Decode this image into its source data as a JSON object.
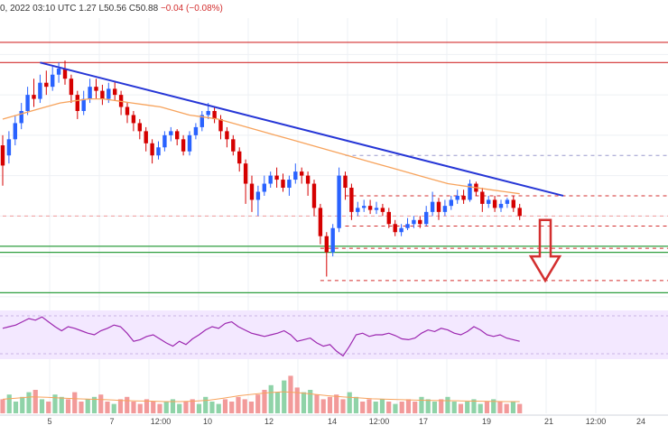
{
  "header": {
    "date_time_fragment": "0, 2022 03:10 UTC",
    "high_fragment": "1.27",
    "low": "L50.56",
    "close": "C50.88",
    "change": "−0.04 (−0.08%)"
  },
  "chart_data": {
    "type": "candlestick",
    "x_ticks": [
      "5",
      "7",
      "12:00",
      "10",
      "12",
      "14",
      "12:00",
      "17",
      "19",
      "21",
      "12:00",
      "24"
    ],
    "colors": {
      "up": "#2962ff",
      "down": "#d50000",
      "ma": "#f7a35c",
      "trendline": "#2636d6",
      "support": "#2e9e3e",
      "resistance": "#d32f2f",
      "rsi": "#9c27b0"
    },
    "price_candles": [
      [
        55,
        45,
        60,
        35
      ],
      [
        50,
        58,
        62,
        46
      ],
      [
        58,
        66,
        70,
        55
      ],
      [
        66,
        72,
        76,
        63
      ],
      [
        72,
        80,
        84,
        70
      ],
      [
        80,
        78,
        88,
        74
      ],
      [
        78,
        86,
        90,
        76
      ],
      [
        86,
        84,
        92,
        80
      ],
      [
        84,
        90,
        94,
        82
      ],
      [
        90,
        93,
        96,
        86
      ],
      [
        93,
        88,
        97,
        85
      ],
      [
        88,
        80,
        90,
        76
      ],
      [
        80,
        72,
        82,
        68
      ],
      [
        72,
        78,
        82,
        70
      ],
      [
        78,
        84,
        88,
        76
      ],
      [
        84,
        82,
        88,
        78
      ],
      [
        82,
        78,
        85,
        75
      ],
      [
        78,
        83,
        86,
        76
      ],
      [
        83,
        80,
        87,
        77
      ],
      [
        80,
        74,
        82,
        70
      ],
      [
        74,
        70,
        76,
        66
      ],
      [
        70,
        66,
        72,
        62
      ],
      [
        66,
        62,
        68,
        58
      ],
      [
        62,
        56,
        64,
        52
      ],
      [
        56,
        50,
        58,
        46
      ],
      [
        50,
        54,
        57,
        48
      ],
      [
        54,
        60,
        62,
        52
      ],
      [
        60,
        62,
        64,
        57
      ],
      [
        62,
        58,
        63,
        55
      ],
      [
        58,
        52,
        60,
        50
      ],
      [
        52,
        60,
        62,
        50
      ],
      [
        60,
        64,
        66,
        58
      ],
      [
        64,
        70,
        72,
        62
      ],
      [
        70,
        72,
        76,
        68
      ],
      [
        72,
        68,
        74,
        66
      ],
      [
        68,
        62,
        70,
        58
      ],
      [
        62,
        58,
        64,
        54
      ],
      [
        58,
        52,
        60,
        50
      ],
      [
        52,
        46,
        54,
        42
      ],
      [
        46,
        36,
        48,
        26
      ],
      [
        36,
        28,
        40,
        22
      ],
      [
        28,
        32,
        35,
        20
      ],
      [
        32,
        36,
        40,
        30
      ],
      [
        36,
        40,
        42,
        34
      ],
      [
        40,
        38,
        44,
        34
      ],
      [
        38,
        34,
        41,
        32
      ],
      [
        34,
        38,
        40,
        30
      ],
      [
        38,
        42,
        46,
        36
      ],
      [
        42,
        40,
        44,
        36
      ],
      [
        40,
        36,
        42,
        30
      ],
      [
        36,
        24,
        38,
        20
      ],
      [
        24,
        10,
        26,
        6
      ],
      [
        10,
        2,
        12,
        -10
      ],
      [
        2,
        14,
        16,
        0
      ],
      [
        14,
        40,
        44,
        12
      ],
      [
        40,
        34,
        42,
        28
      ],
      [
        34,
        22,
        36,
        18
      ],
      [
        22,
        24,
        27,
        20
      ],
      [
        24,
        25,
        28,
        22
      ],
      [
        25,
        23,
        28,
        21
      ],
      [
        23,
        24,
        27,
        21
      ],
      [
        24,
        22,
        26,
        20
      ],
      [
        22,
        16,
        24,
        14
      ],
      [
        16,
        12,
        18,
        10
      ],
      [
        12,
        14,
        16,
        10
      ],
      [
        14,
        16,
        19,
        13
      ],
      [
        16,
        18,
        20,
        14
      ],
      [
        18,
        16,
        20,
        14
      ],
      [
        16,
        22,
        25,
        15
      ],
      [
        22,
        27,
        32,
        20
      ],
      [
        27,
        22,
        29,
        18
      ],
      [
        22,
        25,
        28,
        20
      ],
      [
        25,
        28,
        30,
        23
      ],
      [
        28,
        30,
        33,
        26
      ],
      [
        30,
        28,
        33,
        26
      ],
      [
        28,
        36,
        38,
        27
      ],
      [
        36,
        32,
        37,
        30
      ],
      [
        32,
        26,
        34,
        22
      ],
      [
        26,
        28,
        30,
        24
      ],
      [
        28,
        24,
        30,
        22
      ],
      [
        24,
        26,
        28,
        22
      ],
      [
        26,
        28,
        29,
        24
      ],
      [
        28,
        24,
        30,
        22
      ],
      [
        24,
        20,
        26,
        18
      ]
    ],
    "ma_line": [
      68,
      70,
      72,
      74,
      76,
      77,
      78,
      78,
      77,
      76,
      75,
      74,
      72,
      70,
      69,
      68,
      66,
      64,
      62,
      60,
      58,
      56,
      54,
      52,
      50,
      48,
      46,
      44,
      42,
      40,
      38,
      36,
      35,
      34,
      33,
      32,
      31
    ],
    "trendline": {
      "from": [
        6,
        96
      ],
      "to": [
        90,
        30
      ]
    },
    "resistance_levels": [
      106,
      96
    ],
    "support_levels": [
      5,
      2,
      -18
    ],
    "dashed_levels": [
      {
        "value": 50,
        "start": 55,
        "color": "#9a9acd"
      },
      {
        "value": 30,
        "start": 55,
        "color": "#d32f2f"
      },
      {
        "value": 15,
        "start": 55,
        "color": "#d32f2f"
      },
      {
        "value": 4,
        "start": 51,
        "color": "#d32f2f"
      },
      {
        "value": -12,
        "start": 51,
        "color": "#d32f2f"
      },
      {
        "value": 20,
        "start": 0,
        "color": "#ef9a9a"
      }
    ],
    "arrow_value_range": [
      18,
      -12
    ],
    "rsi": [
      58,
      60,
      62,
      66,
      70,
      68,
      72,
      66,
      60,
      55,
      60,
      58,
      55,
      52,
      50,
      55,
      58,
      62,
      60,
      52,
      42,
      44,
      48,
      50,
      45,
      40,
      36,
      42,
      38,
      45,
      50,
      56,
      60,
      58,
      64,
      66,
      60,
      56,
      52,
      50,
      48,
      50,
      52,
      55,
      50,
      42,
      44,
      46,
      40,
      36,
      38,
      30,
      24,
      36,
      50,
      52,
      48,
      50,
      50,
      52,
      49,
      45,
      44,
      46,
      52,
      56,
      54,
      58,
      56,
      52,
      50,
      54,
      60,
      56,
      50,
      48,
      50,
      46,
      44,
      42
    ],
    "volume": [
      6,
      8,
      5,
      7,
      9,
      10,
      6,
      5,
      8,
      7,
      6,
      9,
      5,
      6,
      7,
      8,
      5,
      4,
      6,
      7,
      5,
      4,
      6,
      5,
      4,
      5,
      6,
      4,
      5,
      6,
      4,
      7,
      5,
      4,
      6,
      5,
      7,
      6,
      5,
      8,
      10,
      12,
      9,
      14,
      16,
      11,
      9,
      10,
      8,
      6,
      7,
      8,
      6,
      9,
      7,
      5,
      6,
      5,
      6,
      5,
      4,
      5,
      6,
      5,
      7,
      6,
      5,
      6,
      7,
      5,
      4,
      5,
      6,
      4,
      5,
      6,
      5,
      4,
      5,
      4
    ],
    "volume_ma": [
      6,
      6.5,
      7,
      6.8,
      6.5,
      6.2,
      6,
      5.8,
      5.5,
      5.3,
      5.2,
      5,
      5,
      5.2,
      5.6,
      6.5,
      7.5,
      8.2,
      8.8,
      9.2,
      8.8,
      8.2,
      7.5,
      7,
      6.6,
      6.2,
      6,
      5.8,
      5.6,
      5.5,
      5.4,
      5.3,
      5.2,
      5.1,
      5,
      5
    ]
  }
}
